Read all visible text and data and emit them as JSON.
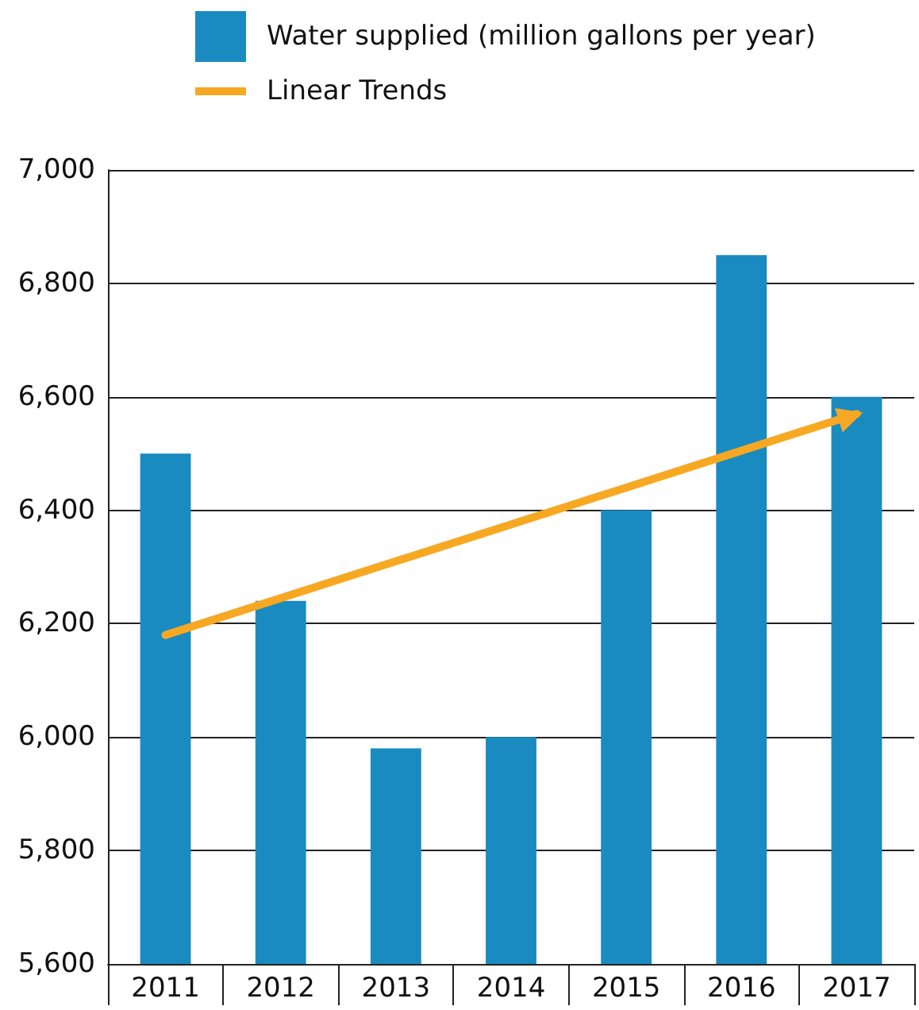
{
  "chart_data": {
    "type": "bar",
    "categories": [
      "2011",
      "2012",
      "2013",
      "2014",
      "2015",
      "2016",
      "2017"
    ],
    "series": [
      {
        "name": "Water supplied (million gallons per year)",
        "color": "#1a8bc0",
        "values": [
          6500,
          6240,
          5980,
          6000,
          6400,
          6850,
          6600
        ]
      },
      {
        "name": "Linear Trends",
        "type": "line",
        "color": "#f7a823",
        "values": [
          6180,
          null,
          null,
          null,
          null,
          null,
          6570
        ]
      }
    ],
    "ylim": [
      5600,
      7000
    ],
    "yticks": [
      {
        "value": 5600,
        "label": "5,600"
      },
      {
        "value": 5800,
        "label": "5,800"
      },
      {
        "value": 6000,
        "label": "6,000"
      },
      {
        "value": 6200,
        "label": "6,200"
      },
      {
        "value": 6400,
        "label": "6,400"
      },
      {
        "value": 6600,
        "label": "6,600"
      },
      {
        "value": 6800,
        "label": "6,800"
      },
      {
        "value": 7000,
        "label": "7,000"
      }
    ],
    "grid": "y",
    "legend": "top left",
    "line_style": "solid"
  }
}
